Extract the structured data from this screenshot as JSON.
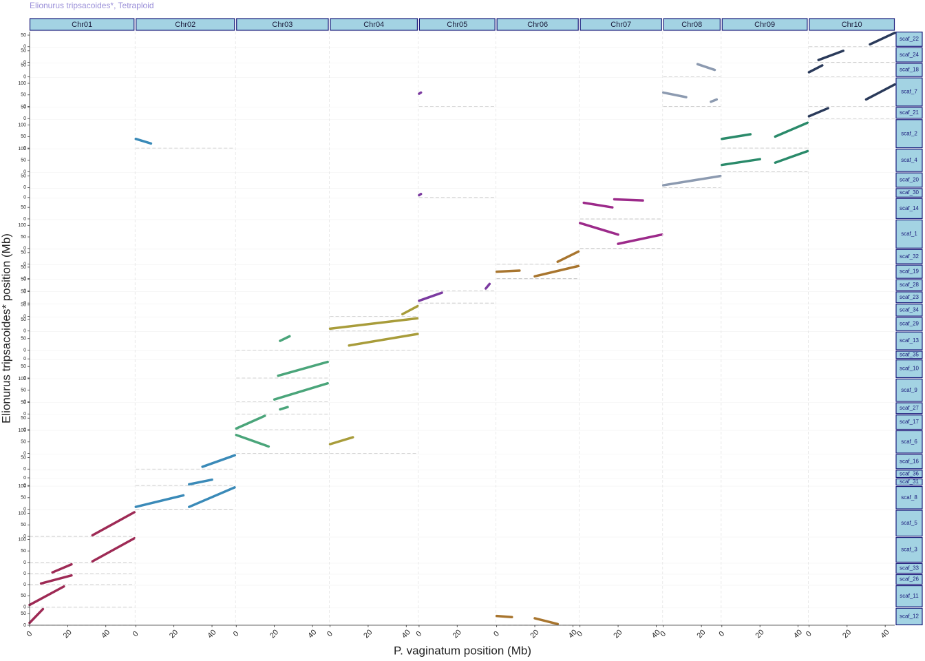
{
  "chart_data": {
    "type": "dotplot",
    "title": "Elionurus tripsacoides*, Tetraploid",
    "x_label": "P. vaginatum position (Mb)",
    "y_label": "Elionurus tripsacoides* position (Mb)",
    "columns": [
      {
        "name": "Chr01",
        "color": "#9e2a55",
        "xlim": [
          0,
          55
        ],
        "xticks": [
          0,
          20,
          40
        ],
        "segments": [
          {
            "row": "scaf_12",
            "x": [
              0,
              7
            ],
            "y": [
              10,
              70
            ]
          },
          {
            "row": "scaf_11",
            "x": [
              0,
              18
            ],
            "y": [
              10,
              90
            ]
          },
          {
            "row": "scaf_26",
            "x": [
              6,
              22
            ],
            "y": [
              5,
              40
            ]
          },
          {
            "row": "scaf_33",
            "x": [
              12,
              22
            ],
            "y": [
              5,
              40
            ]
          },
          {
            "row": "scaf_3",
            "x": [
              33,
              55
            ],
            "y": [
              5,
              105
            ]
          },
          {
            "row": "scaf_5",
            "x": [
              33,
              55
            ],
            "y": [
              5,
              105
            ]
          }
        ]
      },
      {
        "name": "Chr02",
        "color": "#3a8ab8",
        "xlim": [
          0,
          52
        ],
        "xticks": [
          0,
          20,
          40
        ],
        "segments": [
          {
            "row": "scaf_2",
            "x": [
              0,
              8
            ],
            "y": [
              40,
              20
            ]
          },
          {
            "row": "scaf_8",
            "x": [
              0,
              25
            ],
            "y": [
              10,
              60
            ]
          },
          {
            "row": "scaf_8",
            "x": [
              28,
              52
            ],
            "y": [
              10,
              95
            ]
          },
          {
            "row": "scaf_31",
            "x": [
              28,
              40
            ],
            "y": [
              5,
              25
            ]
          },
          {
            "row": "scaf_16",
            "x": [
              35,
              52
            ],
            "y": [
              10,
              60
            ]
          }
        ]
      },
      {
        "name": "Chr03",
        "color": "#4aa57a",
        "xlim": [
          0,
          48.5
        ],
        "xticks": [
          0,
          20,
          40
        ],
        "segments": [
          {
            "row": "scaf_6",
            "x": [
              0,
              17
            ],
            "y": [
              80,
              30
            ]
          },
          {
            "row": "scaf_17",
            "x": [
              0,
              15
            ],
            "y": [
              5,
              60
            ]
          },
          {
            "row": "scaf_27",
            "x": [
              23,
              27
            ],
            "y": [
              20,
              30
            ]
          },
          {
            "row": "scaf_9",
            "x": [
              20,
              48
            ],
            "y": [
              10,
              80
            ]
          },
          {
            "row": "scaf_10",
            "x": [
              22,
              48
            ],
            "y": [
              10,
              70
            ]
          },
          {
            "row": "scaf_13",
            "x": [
              23,
              28
            ],
            "y": [
              40,
              60
            ]
          }
        ]
      },
      {
        "name": "Chr04",
        "color": "#a89c3a",
        "xlim": [
          0,
          46
        ],
        "xticks": [
          0,
          20,
          40
        ],
        "segments": [
          {
            "row": "scaf_6",
            "x": [
              0,
              12
            ],
            "y": [
              40,
              70
            ]
          },
          {
            "row": "scaf_13",
            "x": [
              10,
              46
            ],
            "y": [
              20,
              70
            ]
          },
          {
            "row": "scaf_29",
            "x": [
              0,
              46
            ],
            "y": [
              10,
              55
            ]
          },
          {
            "row": "scaf_34",
            "x": [
              38,
              46
            ],
            "y": [
              10,
              45
            ]
          }
        ]
      },
      {
        "name": "Chr05",
        "color": "#7b3aa0",
        "xlim": [
          0,
          40
        ],
        "xticks": [
          0,
          20
        ],
        "segments": [
          {
            "row": "scaf_23",
            "x": [
              0,
              12
            ],
            "y": [
              10,
              45
            ]
          },
          {
            "row": "scaf_28",
            "x": [
              35,
              37
            ],
            "y": [
              10,
              30
            ]
          },
          {
            "row": "scaf_30",
            "x": [
              0,
              1
            ],
            "y": [
              10,
              15
            ]
          },
          {
            "row": "scaf_7",
            "x": [
              0,
              1
            ],
            "y": [
              55,
              60
            ]
          }
        ]
      },
      {
        "name": "Chr06",
        "color": "#a8752e",
        "xlim": [
          0,
          43
        ],
        "xticks": [
          0,
          20,
          40
        ],
        "segments": [
          {
            "row": "scaf_12",
            "x": [
              0,
              8
            ],
            "y": [
              40,
              35
            ]
          },
          {
            "row": "scaf_12",
            "x": [
              20,
              32
            ],
            "y": [
              30,
              5
            ]
          },
          {
            "row": "scaf_19",
            "x": [
              0,
              12
            ],
            "y": [
              30,
              35
            ]
          },
          {
            "row": "scaf_19",
            "x": [
              20,
              43
            ],
            "y": [
              10,
              55
            ]
          },
          {
            "row": "scaf_32",
            "x": [
              32,
              43
            ],
            "y": [
              10,
              55
            ]
          }
        ]
      },
      {
        "name": "Chr07",
        "color": "#9c2a8a",
        "xlim": [
          0,
          43
        ],
        "xticks": [
          0,
          20,
          40
        ],
        "segments": [
          {
            "row": "scaf_14",
            "x": [
              2,
              17
            ],
            "y": [
              70,
              50
            ]
          },
          {
            "row": "scaf_14",
            "x": [
              18,
              33
            ],
            "y": [
              85,
              80
            ]
          },
          {
            "row": "scaf_1",
            "x": [
              0,
              20
            ],
            "y": [
              110,
              60
            ]
          },
          {
            "row": "scaf_1",
            "x": [
              20,
              43
            ],
            "y": [
              20,
              60
            ]
          }
        ]
      },
      {
        "name": "Chr08",
        "color": "#8c9ab0",
        "xlim": [
          0,
          30
        ],
        "xticks": [
          0,
          20
        ],
        "segments": [
          {
            "row": "scaf_7",
            "x": [
              0,
              12
            ],
            "y": [
              60,
              40
            ]
          },
          {
            "row": "scaf_7",
            "x": [
              25,
              28
            ],
            "y": [
              20,
              30
            ]
          },
          {
            "row": "scaf_18",
            "x": [
              18,
              27
            ],
            "y": [
              55,
              30
            ]
          },
          {
            "row": "scaf_20",
            "x": [
              0,
              30
            ],
            "y": [
              10,
              50
            ]
          }
        ]
      },
      {
        "name": "Chr09",
        "color": "#2a8a6a",
        "xlim": [
          0,
          45
        ],
        "xticks": [
          0,
          20,
          40
        ],
        "segments": [
          {
            "row": "scaf_2",
            "x": [
              0,
              15
            ],
            "y": [
              40,
              60
            ]
          },
          {
            "row": "scaf_2",
            "x": [
              28,
              45
            ],
            "y": [
              50,
              110
            ]
          },
          {
            "row": "scaf_4",
            "x": [
              0,
              20
            ],
            "y": [
              30,
              55
            ]
          },
          {
            "row": "scaf_4",
            "x": [
              28,
              45
            ],
            "y": [
              40,
              90
            ]
          }
        ]
      },
      {
        "name": "Chr10",
        "color": "#2a3a5a",
        "xlim": [
          0,
          45
        ],
        "xticks": [
          0,
          20,
          40
        ],
        "segments": [
          {
            "row": "scaf_21",
            "x": [
              0,
              10
            ],
            "y": [
              10,
              45
            ]
          },
          {
            "row": "scaf_7",
            "x": [
              30,
              45
            ],
            "y": [
              30,
              95
            ]
          },
          {
            "row": "scaf_18",
            "x": [
              0,
              7
            ],
            "y": [
              20,
              50
            ]
          },
          {
            "row": "scaf_24",
            "x": [
              5,
              18
            ],
            "y": [
              10,
              50
            ]
          },
          {
            "row": "scaf_22",
            "x": [
              32,
              45
            ],
            "y": [
              10,
              60
            ]
          }
        ]
      }
    ],
    "rows": [
      {
        "name": "scaf_22",
        "ylim": [
          0,
          65
        ],
        "yticks": [
          0,
          50
        ]
      },
      {
        "name": "scaf_24",
        "ylim": [
          0,
          65
        ],
        "yticks": [
          0,
          50
        ]
      },
      {
        "name": "scaf_18",
        "ylim": [
          0,
          60
        ],
        "yticks": [
          0,
          50
        ]
      },
      {
        "name": "scaf_7",
        "ylim": [
          0,
          125
        ],
        "yticks": [
          0,
          50,
          100
        ]
      },
      {
        "name": "scaf_21",
        "ylim": [
          0,
          50
        ],
        "yticks": [
          0,
          50
        ]
      },
      {
        "name": "scaf_2",
        "ylim": [
          0,
          125
        ],
        "yticks": [
          0,
          50,
          100
        ]
      },
      {
        "name": "scaf_4",
        "ylim": [
          0,
          100
        ],
        "yticks": [
          0,
          50,
          100
        ]
      },
      {
        "name": "scaf_20",
        "ylim": [
          0,
          65
        ],
        "yticks": [
          0,
          50
        ]
      },
      {
        "name": "scaf_30",
        "ylim": [
          0,
          40
        ],
        "yticks": [
          0
        ]
      },
      {
        "name": "scaf_14",
        "ylim": [
          0,
          90
        ],
        "yticks": [
          0,
          50
        ]
      },
      {
        "name": "scaf_1",
        "ylim": [
          0,
          125
        ],
        "yticks": [
          0,
          50,
          100
        ]
      },
      {
        "name": "scaf_32",
        "ylim": [
          0,
          65
        ],
        "yticks": [
          0,
          50
        ]
      },
      {
        "name": "scaf_19",
        "ylim": [
          0,
          60
        ],
        "yticks": [
          0,
          50
        ]
      },
      {
        "name": "scaf_28",
        "ylim": [
          0,
          50
        ],
        "yticks": [
          0,
          50
        ]
      },
      {
        "name": "scaf_23",
        "ylim": [
          0,
          50
        ],
        "yticks": [
          0,
          50
        ]
      },
      {
        "name": "scaf_34",
        "ylim": [
          0,
          55
        ],
        "yticks": [
          0,
          50
        ]
      },
      {
        "name": "scaf_29",
        "ylim": [
          0,
          60
        ],
        "yticks": [
          0,
          50
        ]
      },
      {
        "name": "scaf_13",
        "ylim": [
          0,
          80
        ],
        "yticks": [
          0,
          50
        ]
      },
      {
        "name": "scaf_35",
        "ylim": [
          0,
          35
        ],
        "yticks": [
          0
        ]
      },
      {
        "name": "scaf_10",
        "ylim": [
          0,
          80
        ],
        "yticks": [
          0,
          50
        ]
      },
      {
        "name": "scaf_9",
        "ylim": [
          0,
          100
        ],
        "yticks": [
          0,
          50,
          100
        ]
      },
      {
        "name": "scaf_27",
        "ylim": [
          0,
          50
        ],
        "yticks": [
          0,
          50
        ]
      },
      {
        "name": "scaf_17",
        "ylim": [
          0,
          65
        ],
        "yticks": [
          0,
          50
        ]
      },
      {
        "name": "scaf_6",
        "ylim": [
          0,
          100
        ],
        "yticks": [
          0,
          50,
          100
        ]
      },
      {
        "name": "scaf_16",
        "ylim": [
          0,
          65
        ],
        "yticks": [
          0,
          50
        ]
      },
      {
        "name": "scaf_36",
        "ylim": [
          0,
          35
        ],
        "yticks": [
          0
        ]
      },
      {
        "name": "scaf_31",
        "ylim": [
          0,
          30
        ],
        "yticks": [
          0
        ]
      },
      {
        "name": "scaf_8",
        "ylim": [
          0,
          100
        ],
        "yticks": [
          0,
          50,
          100
        ]
      },
      {
        "name": "scaf_5",
        "ylim": [
          0,
          115
        ],
        "yticks": [
          0,
          50,
          100
        ]
      },
      {
        "name": "scaf_3",
        "ylim": [
          0,
          110
        ],
        "yticks": [
          0,
          50,
          100
        ]
      },
      {
        "name": "scaf_33",
        "ylim": [
          0,
          45
        ],
        "yticks": [
          0
        ]
      },
      {
        "name": "scaf_26",
        "ylim": [
          0,
          45
        ],
        "yticks": [
          0
        ]
      },
      {
        "name": "scaf_11",
        "ylim": [
          0,
          95
        ],
        "yticks": [
          0,
          50
        ]
      },
      {
        "name": "scaf_12",
        "ylim": [
          0,
          75
        ],
        "yticks": [
          0,
          50
        ]
      }
    ]
  }
}
